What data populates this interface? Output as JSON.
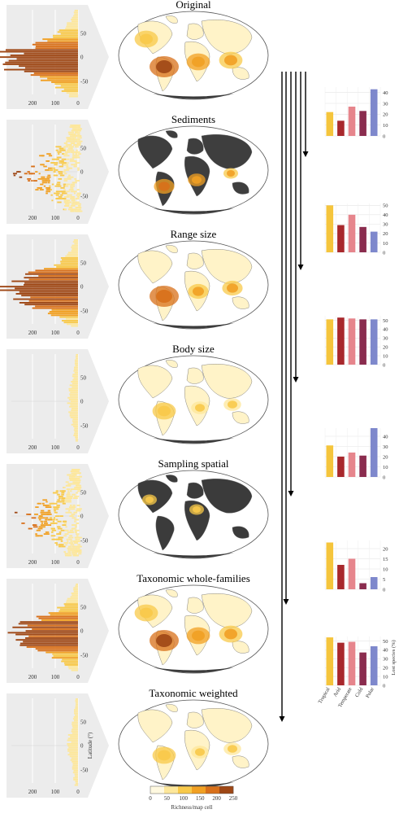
{
  "panels": [
    {
      "title": "Original",
      "hist_scale": 1.0,
      "hist_shape": "tropical",
      "map_theme": "original"
    },
    {
      "title": "Sediments",
      "hist_scale": 1.0,
      "hist_shape": "scatter",
      "map_theme": "sediments"
    },
    {
      "title": "Range size",
      "hist_scale": 1.0,
      "hist_shape": "tropical",
      "map_theme": "range"
    },
    {
      "title": "Body size",
      "hist_scale": 0.4,
      "hist_shape": "flat",
      "map_theme": "light"
    },
    {
      "title": "Sampling spatial",
      "hist_scale": 1.0,
      "hist_shape": "scatter",
      "map_theme": "dark"
    },
    {
      "title": "Taxonomic whole-families",
      "hist_scale": 0.85,
      "hist_shape": "tropical",
      "map_theme": "original"
    },
    {
      "title": "Taxonomic weighted",
      "hist_scale": 0.4,
      "hist_shape": "flat",
      "map_theme": "light"
    }
  ],
  "hist_axis": {
    "xticks": [
      "200",
      "100",
      "0"
    ],
    "yticks": [
      "50",
      "0",
      "-50"
    ],
    "ylabel": "Latitude (°)"
  },
  "colorbar": {
    "ticks": [
      "0",
      "50",
      "100",
      "150",
      "200",
      "250"
    ],
    "label": "Richness/map cell",
    "colors": [
      "#fff9e0",
      "#fde79a",
      "#f8c94a",
      "#f1a023",
      "#d8701a",
      "#9e4715"
    ]
  },
  "chart_data": [
    {
      "type": "bar",
      "categories": [
        "Tropical",
        "Arid",
        "Temperate",
        "Cold",
        "Polar"
      ],
      "values": [
        22,
        14,
        27,
        23,
        43
      ],
      "ylim": [
        0,
        45
      ],
      "yticks": [
        0,
        10,
        20,
        30,
        40
      ],
      "ylabel": ""
    },
    {
      "type": "bar",
      "categories": [
        "Tropical",
        "Arid",
        "Temperate",
        "Cold",
        "Polar"
      ],
      "values": [
        50,
        29,
        40,
        27,
        22
      ],
      "ylim": [
        0,
        52
      ],
      "yticks": [
        0,
        10,
        20,
        30,
        40,
        50
      ],
      "ylabel": ""
    },
    {
      "type": "bar",
      "categories": [
        "Tropical",
        "Arid",
        "Temperate",
        "Cold",
        "Polar"
      ],
      "values": [
        51,
        53,
        52,
        51,
        51
      ],
      "ylim": [
        0,
        55
      ],
      "yticks": [
        0,
        10,
        20,
        30,
        40,
        50
      ],
      "ylabel": ""
    },
    {
      "type": "bar",
      "categories": [
        "Tropical",
        "Arid",
        "Temperate",
        "Cold",
        "Polar"
      ],
      "values": [
        31,
        20,
        24,
        21,
        48
      ],
      "ylim": [
        0,
        48
      ],
      "yticks": [
        0,
        10,
        20,
        30,
        40
      ],
      "ylabel": ""
    },
    {
      "type": "bar",
      "categories": [
        "Tropical",
        "Arid",
        "Temperate",
        "Cold",
        "Polar"
      ],
      "values": [
        23,
        12,
        15,
        3,
        6
      ],
      "ylim": [
        0,
        24
      ],
      "yticks": [
        0,
        5,
        10,
        15,
        20
      ],
      "ylabel": ""
    },
    {
      "type": "bar",
      "categories": [
        "Tropical",
        "Arid",
        "Temperate",
        "Cold",
        "Polar"
      ],
      "values": [
        54,
        48,
        49,
        37,
        44
      ],
      "ylim": [
        0,
        55
      ],
      "yticks": [
        0,
        10,
        20,
        30,
        40,
        50
      ],
      "ylabel": "Lost species (%)"
    }
  ],
  "bar_colors": [
    "#f5c53c",
    "#a8282c",
    "#e6858c",
    "#8a2c4e",
    "#7e88cc"
  ]
}
